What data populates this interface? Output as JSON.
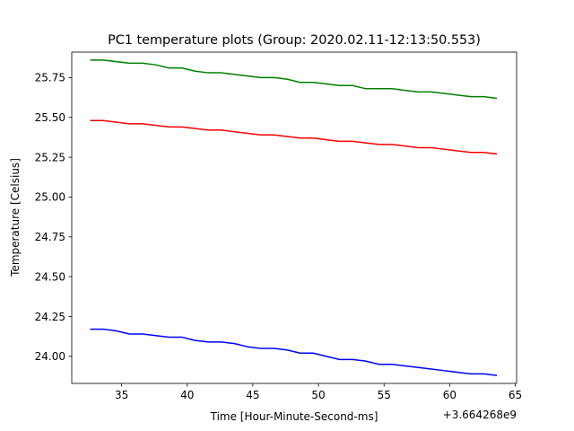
{
  "chart_data": {
    "type": "line",
    "title": "PC1 temperature plots (Group: 2020.02.11-12:13:50.553)",
    "xlabel": "Time [Hour-Minute-Second-ms]",
    "ylabel": "Temperature [Celsius]",
    "x_offset_label": "+3.664268e9",
    "xlim": [
      31.2,
      65.1
    ],
    "ylim": [
      23.83,
      25.91
    ],
    "x_ticks": [
      35,
      40,
      45,
      50,
      55,
      60,
      65
    ],
    "x_tick_labels": [
      "35",
      "40",
      "45",
      "50",
      "55",
      "60",
      "65"
    ],
    "y_ticks": [
      24.0,
      24.25,
      24.5,
      24.75,
      25.0,
      25.25,
      25.5,
      25.75
    ],
    "y_tick_labels": [
      "24.00",
      "24.25",
      "24.50",
      "24.75",
      "25.00",
      "25.25",
      "25.50",
      "25.75"
    ],
    "grid": false,
    "series": [
      {
        "color": "#008000",
        "x": [
          32.6,
          33.6,
          35.6,
          36.6,
          37.6,
          38.6,
          39.6,
          40.6,
          41.6,
          42.6,
          43.6,
          44.6,
          45.6,
          46.6,
          47.6,
          48.6,
          49.6,
          50.6,
          51.6,
          52.6,
          53.6,
          54.6,
          55.6,
          56.6,
          57.6,
          58.6,
          59.6,
          60.6,
          61.6,
          62.6,
          63.6
        ],
        "y": [
          25.86,
          25.86,
          25.84,
          25.84,
          25.83,
          25.81,
          25.81,
          25.79,
          25.78,
          25.78,
          25.77,
          25.76,
          25.75,
          25.75,
          25.74,
          25.72,
          25.72,
          25.71,
          25.7,
          25.7,
          25.68,
          25.68,
          25.68,
          25.67,
          25.66,
          25.66,
          25.65,
          25.64,
          25.63,
          25.63,
          25.62
        ]
      },
      {
        "color": "#ff0000",
        "x": [
          32.6,
          33.6,
          35.6,
          36.6,
          37.6,
          38.6,
          39.6,
          40.6,
          41.6,
          42.6,
          43.6,
          44.6,
          45.6,
          46.6,
          47.6,
          48.6,
          49.6,
          50.6,
          51.6,
          52.6,
          53.6,
          54.6,
          55.6,
          56.6,
          57.6,
          58.6,
          59.6,
          60.6,
          61.6,
          62.6,
          63.6
        ],
        "y": [
          25.48,
          25.48,
          25.46,
          25.46,
          25.45,
          25.44,
          25.44,
          25.43,
          25.42,
          25.42,
          25.41,
          25.4,
          25.39,
          25.39,
          25.38,
          25.37,
          25.37,
          25.36,
          25.35,
          25.35,
          25.34,
          25.33,
          25.33,
          25.32,
          25.31,
          25.31,
          25.3,
          25.29,
          25.28,
          25.28,
          25.27
        ]
      },
      {
        "color": "#0000ff",
        "x": [
          32.6,
          33.6,
          34.6,
          35.6,
          36.6,
          37.6,
          38.6,
          39.6,
          40.6,
          41.6,
          42.6,
          43.6,
          44.6,
          45.6,
          46.6,
          47.6,
          48.6,
          49.6,
          50.6,
          51.6,
          52.6,
          53.6,
          54.6,
          55.6,
          56.6,
          57.6,
          58.6,
          59.6,
          60.6,
          61.6,
          62.6,
          63.6
        ],
        "y": [
          24.17,
          24.17,
          24.16,
          24.14,
          24.14,
          24.13,
          24.12,
          24.12,
          24.1,
          24.09,
          24.09,
          24.08,
          24.06,
          24.05,
          24.05,
          24.04,
          24.02,
          24.02,
          24.0,
          23.98,
          23.98,
          23.97,
          23.95,
          23.95,
          23.94,
          23.93,
          23.92,
          23.91,
          23.9,
          23.89,
          23.89,
          23.88
        ]
      }
    ]
  }
}
